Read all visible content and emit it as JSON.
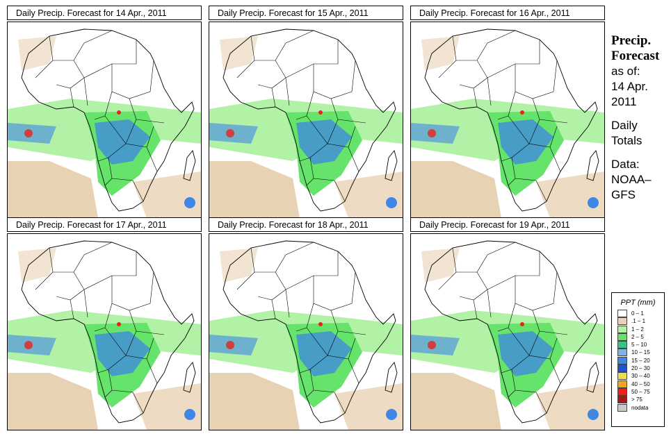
{
  "panels": [
    {
      "title": "Daily Precip. Forecast for  14 Apr., 2011"
    },
    {
      "title": "Daily Precip. Forecast for  15 Apr., 2011"
    },
    {
      "title": "Daily Precip. Forecast for  16 Apr., 2011"
    },
    {
      "title": "Daily Precip. Forecast for  17 Apr., 2011"
    },
    {
      "title": "Daily Precip. Forecast for  18 Apr., 2011"
    },
    {
      "title": "Daily Precip. Forecast for  19 Apr., 2011"
    }
  ],
  "info": {
    "title_line1": "Precip.",
    "title_line2": "Forecast",
    "asof_label": "as of:",
    "asof_date_line1": "14 Apr.",
    "asof_date_line2": "2011",
    "totals_line1": "Daily",
    "totals_line2": "Totals",
    "source_line1": "Data:",
    "source_line2": "NOAA–",
    "source_line3": "GFS"
  },
  "legend": {
    "title": "PPT (mm)",
    "items": [
      {
        "label": "0 – 1",
        "color": "#ffffff"
      },
      {
        "label": ".1 – 1",
        "color": "#e8d2b4"
      },
      {
        "label": "1 – 2",
        "color": "#b2f2a6"
      },
      {
        "label": "2 – 5",
        "color": "#66e36a"
      },
      {
        "label": "5 – 10",
        "color": "#3cc08c"
      },
      {
        "label": "10 – 15",
        "color": "#7ab4f0"
      },
      {
        "label": "15 – 20",
        "color": "#3f86e6"
      },
      {
        "label": "20 – 30",
        "color": "#1f55c9"
      },
      {
        "label": "30 – 40",
        "color": "#f2dc4a"
      },
      {
        "label": "40 – 50",
        "color": "#f2a422"
      },
      {
        "label": "50 – 75",
        "color": "#e8231b"
      },
      {
        "label": "> 75",
        "color": "#b01414"
      },
      {
        "label": "nodata",
        "color": "#c8c8c8"
      }
    ]
  },
  "colors": {
    "land_dry": "#ffffff",
    "light": "#e8d2b4",
    "rain_low": "#b2f2a6",
    "rain_mid": "#66e36a",
    "rain_high": "#3f86e6",
    "rain_heavy": "#e8231b"
  }
}
